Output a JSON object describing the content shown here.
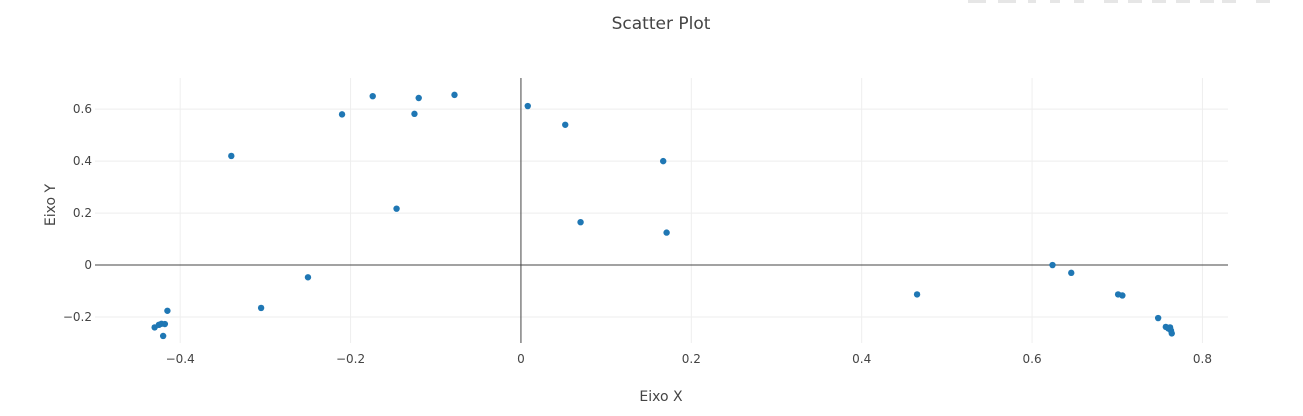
{
  "chart_data": {
    "type": "scatter",
    "title": "Scatter Plot",
    "xlabel": "Eixo X",
    "ylabel": "Eixo Y",
    "xlim": [
      -0.5,
      0.83
    ],
    "ylim": [
      -0.3,
      0.72
    ],
    "xticks": [
      -0.4,
      -0.2,
      0,
      0.2,
      0.4,
      0.6,
      0.8
    ],
    "xtick_labels": [
      "−0.4",
      "−0.2",
      "0",
      "0.2",
      "0.4",
      "0.6",
      "0.8"
    ],
    "yticks": [
      -0.2,
      0,
      0.2,
      0.4,
      0.6
    ],
    "ytick_labels": [
      "−0.2",
      "0",
      "0.2",
      "0.4",
      "0.6"
    ],
    "grid": true,
    "marker_color": "#1f77b4",
    "points": [
      {
        "x": -0.43,
        "y": -0.24
      },
      {
        "x": -0.425,
        "y": -0.23
      },
      {
        "x": -0.422,
        "y": -0.226
      },
      {
        "x": -0.418,
        "y": -0.227
      },
      {
        "x": -0.42,
        "y": -0.273
      },
      {
        "x": -0.415,
        "y": -0.176
      },
      {
        "x": -0.34,
        "y": 0.42
      },
      {
        "x": -0.305,
        "y": -0.165
      },
      {
        "x": -0.25,
        "y": -0.047
      },
      {
        "x": -0.21,
        "y": 0.58
      },
      {
        "x": -0.174,
        "y": 0.65
      },
      {
        "x": -0.146,
        "y": 0.217
      },
      {
        "x": -0.125,
        "y": 0.582
      },
      {
        "x": -0.12,
        "y": 0.643
      },
      {
        "x": -0.078,
        "y": 0.655
      },
      {
        "x": 0.008,
        "y": 0.612
      },
      {
        "x": 0.052,
        "y": 0.54
      },
      {
        "x": 0.07,
        "y": 0.165
      },
      {
        "x": 0.167,
        "y": 0.4
      },
      {
        "x": 0.171,
        "y": 0.125
      },
      {
        "x": 0.465,
        "y": -0.113
      },
      {
        "x": 0.624,
        "y": 0.0
      },
      {
        "x": 0.646,
        "y": -0.03
      },
      {
        "x": 0.701,
        "y": -0.113
      },
      {
        "x": 0.706,
        "y": -0.117
      },
      {
        "x": 0.748,
        "y": -0.204
      },
      {
        "x": 0.757,
        "y": -0.238
      },
      {
        "x": 0.76,
        "y": -0.244
      },
      {
        "x": 0.762,
        "y": -0.24
      },
      {
        "x": 0.763,
        "y": -0.252
      },
      {
        "x": 0.764,
        "y": -0.263
      }
    ]
  }
}
